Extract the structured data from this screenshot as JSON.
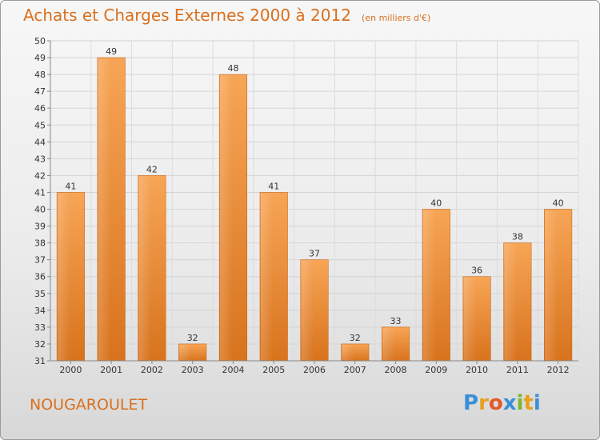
{
  "chart_data": {
    "type": "bar",
    "title": "Achats et Charges Externes 2000 à 2012",
    "subtitle": "(en milliers d'€)",
    "categories": [
      "2000",
      "2001",
      "2002",
      "2003",
      "2004",
      "2005",
      "2006",
      "2007",
      "2008",
      "2009",
      "2010",
      "2011",
      "2012"
    ],
    "values": [
      41,
      49,
      42,
      32,
      48,
      41,
      37,
      32,
      33,
      40,
      36,
      38,
      40
    ],
    "ylim": [
      31,
      50
    ],
    "yticks": [
      "31",
      "32",
      "33",
      "34",
      "35",
      "36",
      "37",
      "38",
      "39",
      "40",
      "41",
      "42",
      "43",
      "44",
      "45",
      "46",
      "47",
      "48",
      "49",
      "50"
    ],
    "grid": true,
    "bar_color": "#f0903a"
  },
  "commune": "NOUGAROULET",
  "logo": {
    "letters": [
      "P",
      "r",
      "o",
      "x",
      "i",
      "t",
      "i"
    ],
    "colors": [
      "#3a8fd8",
      "#e8a020",
      "#e05a2a",
      "#3a8fd8",
      "#7ab82e",
      "#e8a020",
      "#3a8fd8"
    ]
  }
}
